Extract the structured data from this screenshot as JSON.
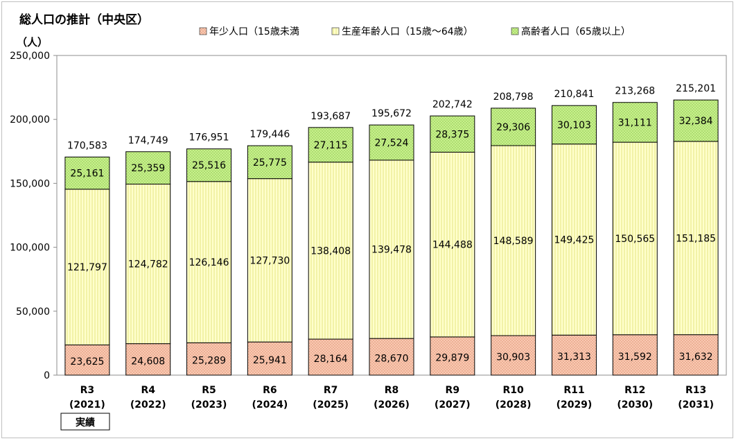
{
  "chart_data": {
    "type": "bar",
    "stacked": true,
    "title": "総人口の推計（中央区）",
    "ylabel": "（人）",
    "ylim": [
      0,
      250000
    ],
    "yticks": [
      0,
      50000,
      100000,
      150000,
      200000,
      250000
    ],
    "grid": false,
    "legend_position": "top",
    "categories": [
      {
        "label": "R3",
        "year": "(2021)"
      },
      {
        "label": "R4",
        "year": "(2022)"
      },
      {
        "label": "R5",
        "year": "(2023)"
      },
      {
        "label": "R6",
        "year": "(2024)"
      },
      {
        "label": "R7",
        "year": "(2025)"
      },
      {
        "label": "R8",
        "year": "(2026)"
      },
      {
        "label": "R9",
        "year": "(2027)"
      },
      {
        "label": "R10",
        "year": "(2028)"
      },
      {
        "label": "R11",
        "year": "(2029)"
      },
      {
        "label": "R12",
        "year": "(2030)"
      },
      {
        "label": "R13",
        "year": "(2031)"
      }
    ],
    "series": [
      {
        "name": "年少人口（15歳未満",
        "color": "#f9c8b0",
        "pattern": "dots",
        "values": [
          23625,
          24608,
          25289,
          25941,
          28164,
          28670,
          29879,
          30903,
          31313,
          31592,
          31632
        ]
      },
      {
        "name": "生産年齢人口（15歳～64歳）",
        "color": "#ffffc8",
        "pattern": "vlines",
        "values": [
          121797,
          124782,
          126146,
          127730,
          138408,
          139478,
          144488,
          148589,
          149425,
          150565,
          151185
        ]
      },
      {
        "name": "高齢者人口（65歳以上）",
        "color": "#c6f08a",
        "pattern": "dots",
        "values": [
          25161,
          25359,
          25516,
          25775,
          27115,
          27524,
          28375,
          29306,
          30103,
          31111,
          32384
        ]
      }
    ],
    "totals": [
      170583,
      174749,
      176951,
      179446,
      193687,
      195672,
      202742,
      208798,
      210841,
      213268,
      215201
    ],
    "annotations": [
      {
        "text": "実績",
        "under_categories": [
          "R3"
        ]
      }
    ]
  }
}
